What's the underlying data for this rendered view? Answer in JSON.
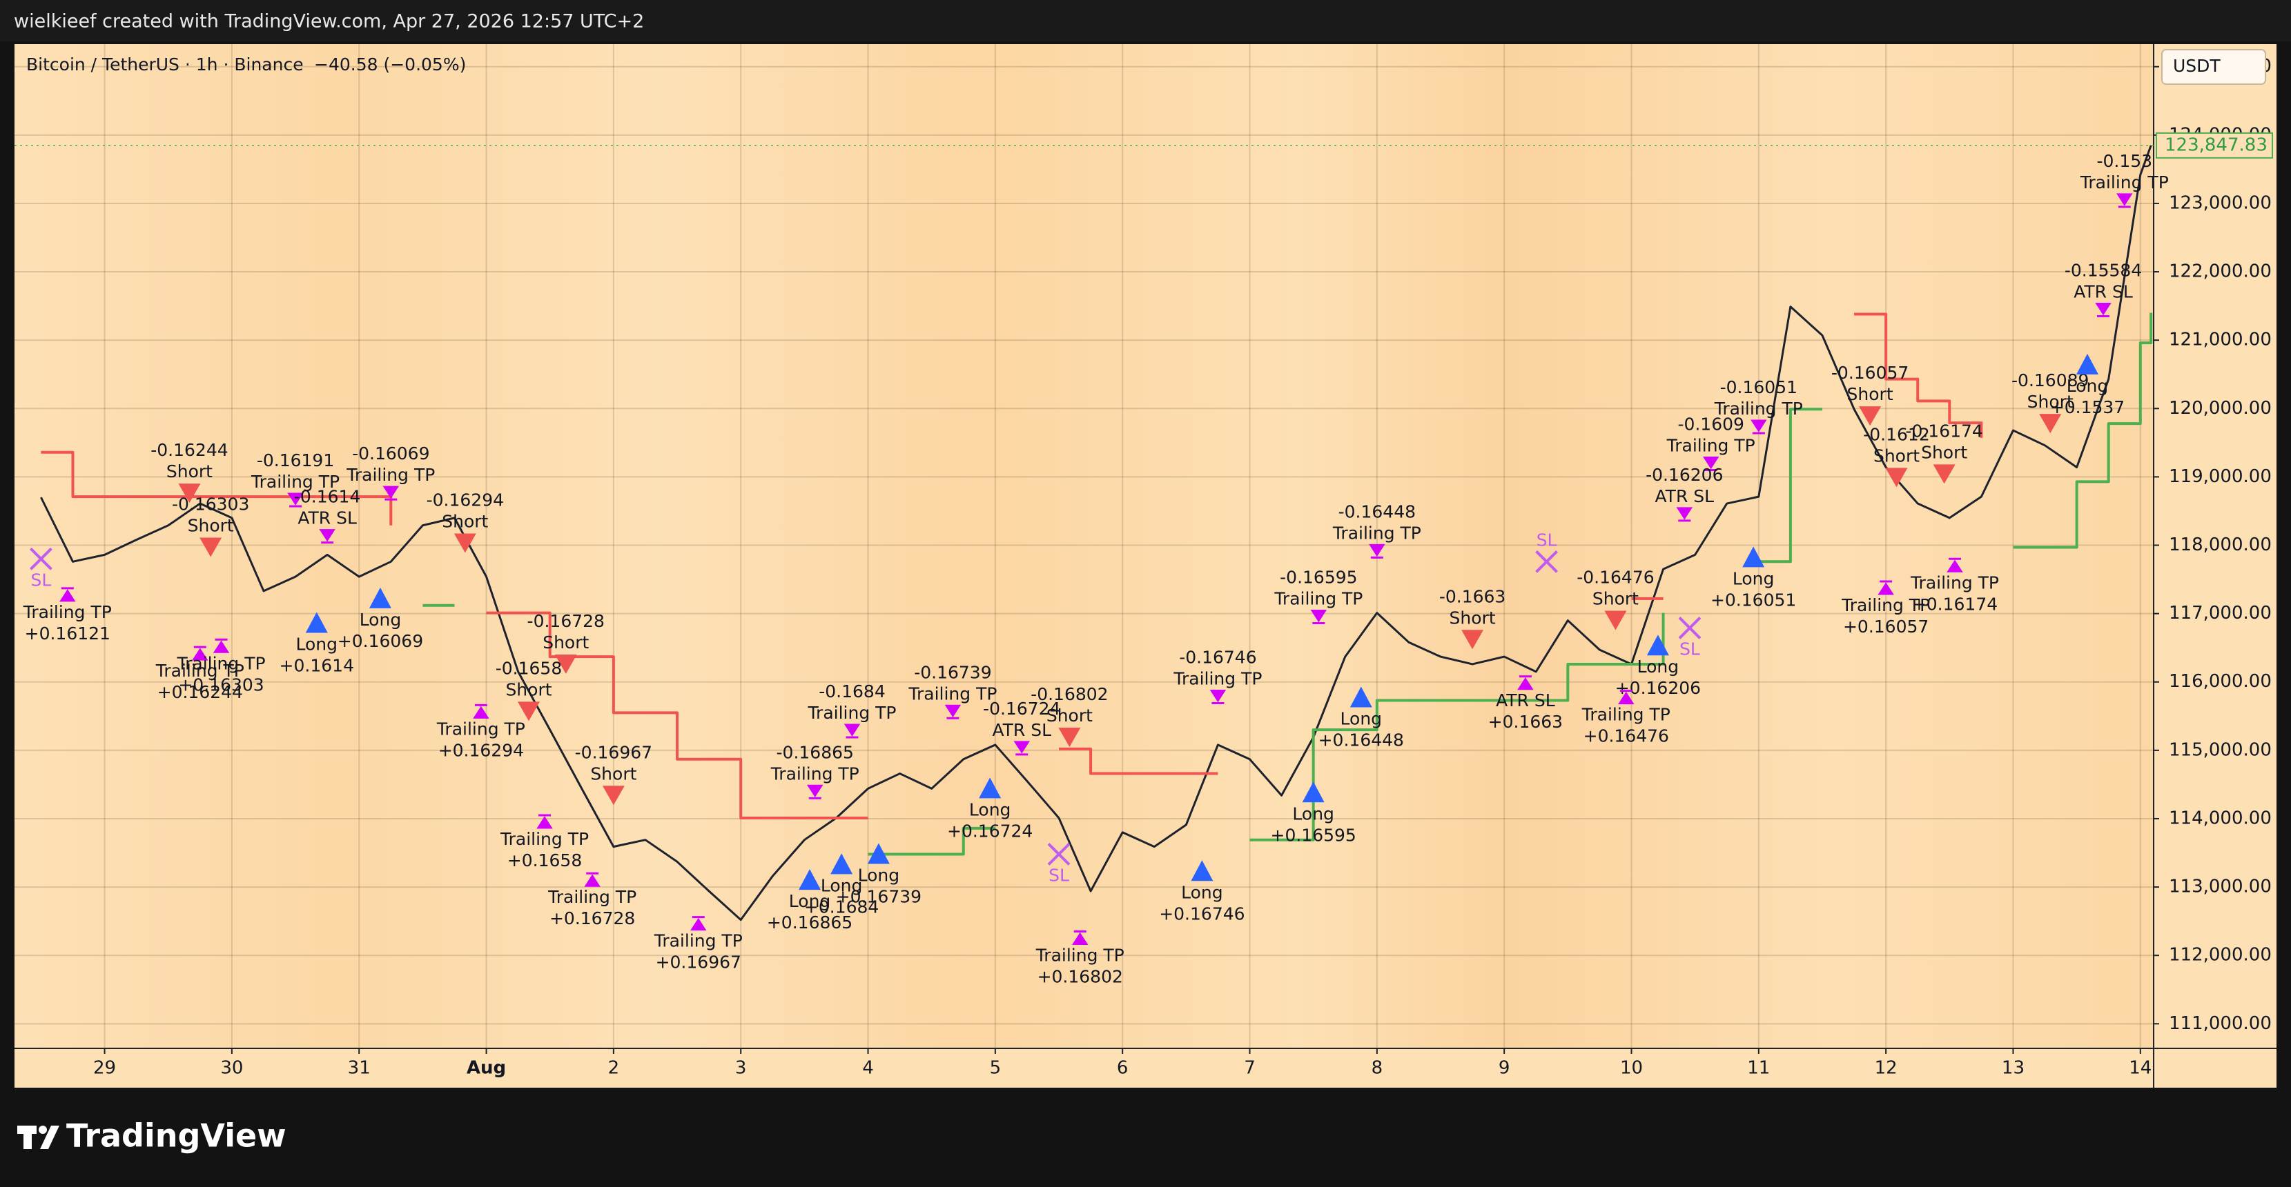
{
  "header": {
    "text": "wielkieef created with TradingView.com, Apr 27, 2026 12:57 UTC+2"
  },
  "footer": {
    "brand": "TradingView"
  },
  "chart_data": {
    "type": "line",
    "title": "Bitcoin / TetherUS · 1h · Binance",
    "change": "−40.58 (−0.05%)",
    "currency": "USDT",
    "last_price": {
      "value": 123847.83,
      "label": "123,847.83"
    },
    "grid": true,
    "xlim": [
      "07-28 07:00",
      "08-14 02:30"
    ],
    "ylim": [
      110640,
      125330
    ],
    "xticks": [
      {
        "value": "07-29",
        "label": "29"
      },
      {
        "value": "07-30",
        "label": "30"
      },
      {
        "value": "07-31",
        "label": "31"
      },
      {
        "value": "08-01",
        "label": "Aug"
      },
      {
        "value": "08-02",
        "label": "2"
      },
      {
        "value": "08-03",
        "label": "3"
      },
      {
        "value": "08-04",
        "label": "4"
      },
      {
        "value": "08-05",
        "label": "5"
      },
      {
        "value": "08-06",
        "label": "6"
      },
      {
        "value": "08-07",
        "label": "7"
      },
      {
        "value": "08-08",
        "label": "8"
      },
      {
        "value": "08-09",
        "label": "9"
      },
      {
        "value": "08-10",
        "label": "10"
      },
      {
        "value": "08-11",
        "label": "11"
      },
      {
        "value": "08-12",
        "label": "12"
      },
      {
        "value": "08-13",
        "label": "13"
      },
      {
        "value": "08-14",
        "label": "14"
      }
    ],
    "yticks": [
      {
        "value": 111000,
        "label": "111,000.00"
      },
      {
        "value": 112000,
        "label": "112,000.00"
      },
      {
        "value": 113000,
        "label": "113,000.00"
      },
      {
        "value": 114000,
        "label": "114,000.00"
      },
      {
        "value": 115000,
        "label": "115,000.00"
      },
      {
        "value": 116000,
        "label": "116,000.00"
      },
      {
        "value": 117000,
        "label": "117,000.00"
      },
      {
        "value": 118000,
        "label": "118,000.00"
      },
      {
        "value": 119000,
        "label": "119,000.00"
      },
      {
        "value": 120000,
        "label": "120,000.00"
      },
      {
        "value": 121000,
        "label": "121,000.00"
      },
      {
        "value": 122000,
        "label": "122,000.00"
      },
      {
        "value": 123000,
        "label": "123,000.00"
      },
      {
        "value": 124000,
        "label": "124,000.00"
      },
      {
        "value": 125000,
        "label": "125,000.00"
      }
    ],
    "x": [
      "07-28 12:00",
      "07-28 18:00",
      "07-29 00:00",
      "07-29 06:00",
      "07-29 12:00",
      "07-29 18:00",
      "07-30 00:00",
      "07-30 06:00",
      "07-30 12:00",
      "07-30 18:00",
      "07-31 00:00",
      "07-31 06:00",
      "07-31 12:00",
      "07-31 18:00",
      "08-01 00:00",
      "08-01 06:00",
      "08-01 12:00",
      "08-01 18:00",
      "08-02 00:00",
      "08-02 06:00",
      "08-02 12:00",
      "08-02 18:00",
      "08-03 00:00",
      "08-03 06:00",
      "08-03 12:00",
      "08-03 18:00",
      "08-04 00:00",
      "08-04 06:00",
      "08-04 12:00",
      "08-04 18:00",
      "08-05 00:00",
      "08-05 06:00",
      "08-05 12:00",
      "08-05 18:00",
      "08-06 00:00",
      "08-06 06:00",
      "08-06 12:00",
      "08-06 18:00",
      "08-07 00:00",
      "08-07 06:00",
      "08-07 12:00",
      "08-07 18:00",
      "08-08 00:00",
      "08-08 06:00",
      "08-08 12:00",
      "08-08 18:00",
      "08-09 00:00",
      "08-09 06:00",
      "08-09 12:00",
      "08-09 18:00",
      "08-10 00:00",
      "08-10 06:00",
      "08-10 12:00",
      "08-10 18:00",
      "08-11 00:00",
      "08-11 06:00",
      "08-11 12:00",
      "08-11 18:00",
      "08-12 00:00",
      "08-12 06:00",
      "08-12 12:00",
      "08-12 18:00",
      "08-13 00:00",
      "08-13 06:00",
      "08-13 12:00",
      "08-13 18:00",
      "08-14 00:00",
      "08-14 02:00"
    ],
    "series": [
      {
        "color": "#1e222d",
        "step": false,
        "values": [
          118700,
          117760,
          117860,
          118080,
          118290,
          118610,
          118400,
          117330,
          117540,
          117860,
          117540,
          117760,
          118290,
          118400,
          117540,
          116150,
          115300,
          114440,
          113590,
          113690,
          113370,
          112940,
          112520,
          113160,
          113690,
          114010,
          114440,
          114660,
          114440,
          114870,
          115080,
          114550,
          114010,
          112940,
          113800,
          113590,
          113910,
          115080,
          114870,
          114340,
          115190,
          116370,
          117010,
          116580,
          116370,
          116260,
          116370,
          116150,
          116900,
          116470,
          116260,
          117650,
          117860,
          118610,
          118710,
          121490,
          121070,
          119990,
          119140,
          118610,
          118400,
          118710,
          119680,
          119460,
          119140,
          120430,
          123420,
          123847.83
        ]
      },
      {
        "color": "#f05350",
        "step": true,
        "values": [
          119360,
          118710,
          118710,
          118710,
          118710,
          118710,
          118710,
          118710,
          118710,
          118710,
          118710,
          118290,
          null,
          null,
          117010,
          117010,
          116370,
          116370,
          115550,
          115550,
          114870,
          114870,
          114010,
          114010,
          114010,
          114010,
          114010,
          null,
          null,
          null,
          null,
          null,
          115020,
          114660,
          114660,
          114660,
          114660,
          114660,
          null,
          null,
          null,
          null,
          null,
          null,
          null,
          null,
          null,
          null,
          null,
          null,
          117220,
          117220,
          null,
          null,
          null,
          null,
          null,
          121380,
          120430,
          120110,
          119790,
          119570,
          null,
          null,
          null,
          null,
          null,
          null
        ]
      },
      {
        "color": "#4caf50",
        "step": true,
        "values": [
          null,
          null,
          null,
          null,
          null,
          null,
          null,
          null,
          null,
          null,
          null,
          null,
          117120,
          117120,
          null,
          null,
          null,
          null,
          null,
          null,
          null,
          null,
          null,
          null,
          null,
          null,
          113480,
          113480,
          113480,
          113860,
          113860,
          null,
          null,
          null,
          null,
          null,
          null,
          null,
          113690,
          113690,
          115300,
          115300,
          115730,
          115730,
          115730,
          115730,
          115730,
          115730,
          116260,
          116260,
          116260,
          117010,
          null,
          null,
          117760,
          119990,
          119990,
          null,
          null,
          null,
          null,
          null,
          117970,
          117970,
          118930,
          119780,
          120960,
          121400
        ]
      }
    ],
    "signals": [
      {
        "type": "short",
        "side": "above",
        "x": "07-29 16:00",
        "y": 118760,
        "text": [
          "-0.16244",
          "Short"
        ]
      },
      {
        "type": "short",
        "side": "above",
        "x": "07-29 20:00",
        "y": 117970,
        "text": [
          "-0.16303",
          "Short"
        ]
      },
      {
        "type": "short",
        "side": "above",
        "x": "07-31 20:00",
        "y": 118030,
        "text": [
          "-0.16294",
          "Short"
        ]
      },
      {
        "type": "short",
        "side": "above",
        "x": "08-01 15:00",
        "y": 116260,
        "text": [
          "-0.16728",
          "Short"
        ]
      },
      {
        "type": "short",
        "side": "above",
        "x": "08-01 08:00",
        "y": 115570,
        "text": [
          "-0.1658",
          "Short"
        ]
      },
      {
        "type": "short",
        "side": "above",
        "x": "08-02 00:00",
        "y": 114340,
        "text": [
          "-0.16967",
          "Short"
        ]
      },
      {
        "type": "short",
        "side": "above",
        "x": "08-05 14:00",
        "y": 115190,
        "text": [
          "-0.16802",
          "Short"
        ]
      },
      {
        "type": "short",
        "side": "above",
        "x": "08-08 18:00",
        "y": 116620,
        "text": [
          "-0.1663",
          "Short"
        ]
      },
      {
        "type": "short",
        "side": "above",
        "x": "08-09 21:00",
        "y": 116900,
        "text": [
          "-0.16476",
          "Short"
        ]
      },
      {
        "type": "short",
        "side": "above",
        "x": "08-11 21:00",
        "y": 119890,
        "text": [
          "-0.16057",
          "Short"
        ]
      },
      {
        "type": "short",
        "side": "above",
        "x": "08-12 02:00",
        "y": 118990,
        "text": [
          "-0.1612",
          "Short"
        ]
      },
      {
        "type": "short",
        "side": "above",
        "x": "08-12 11:00",
        "y": 119040,
        "text": [
          "-0.16174",
          "Short"
        ]
      },
      {
        "type": "short",
        "side": "above",
        "x": "08-13 07:00",
        "y": 119780,
        "text": [
          "-0.16089",
          "Short"
        ]
      },
      {
        "type": "long",
        "side": "below",
        "x": "07-30 16:00",
        "y": 116860,
        "text": [
          "Long",
          "+0.1614"
        ]
      },
      {
        "type": "long",
        "side": "below",
        "x": "07-31 04:00",
        "y": 117220,
        "text": [
          "Long",
          "+0.16069"
        ]
      },
      {
        "type": "long",
        "side": "below",
        "x": "08-03 13:00",
        "y": 113100,
        "text": [
          "Long",
          "+0.16865"
        ]
      },
      {
        "type": "long",
        "side": "below",
        "x": "08-03 19:00",
        "y": 113330,
        "text": [
          "Long",
          "+0.1684"
        ]
      },
      {
        "type": "long",
        "side": "below",
        "x": "08-04 02:00",
        "y": 113480,
        "text": [
          "Long",
          "+0.16739"
        ]
      },
      {
        "type": "long",
        "side": "below",
        "x": "08-04 23:00",
        "y": 114440,
        "text": [
          "Long",
          "+0.16724"
        ]
      },
      {
        "type": "long",
        "side": "below",
        "x": "08-06 15:00",
        "y": 113230,
        "text": [
          "Long",
          "+0.16746"
        ]
      },
      {
        "type": "long",
        "side": "below",
        "x": "08-07 12:00",
        "y": 114380,
        "text": [
          "Long",
          "+0.16595"
        ]
      },
      {
        "type": "long",
        "side": "below",
        "x": "08-07 21:00",
        "y": 115770,
        "text": [
          "Long",
          "+0.16448"
        ]
      },
      {
        "type": "long",
        "side": "below",
        "x": "08-10 05:00",
        "y": 116530,
        "text": [
          "Long",
          "+0.16206"
        ]
      },
      {
        "type": "long",
        "side": "below",
        "x": "08-10 23:00",
        "y": 117820,
        "text": [
          "Long",
          "+0.16051"
        ]
      },
      {
        "type": "long",
        "side": "below",
        "x": "08-13 14:00",
        "y": 120640,
        "text": [
          "Long",
          "+0.1537"
        ]
      },
      {
        "type": "tp",
        "side": "above",
        "x": "07-30 12:00",
        "y": 118610,
        "text": [
          "-0.16191",
          "Trailing TP"
        ]
      },
      {
        "type": "tp",
        "side": "above",
        "x": "07-31 06:00",
        "y": 118710,
        "text": [
          "-0.16069",
          "Trailing TP"
        ]
      },
      {
        "type": "tp",
        "side": "above",
        "x": "08-03 14:00",
        "y": 114340,
        "text": [
          "-0.16865",
          "Trailing TP"
        ]
      },
      {
        "type": "tp",
        "side": "above",
        "x": "08-03 21:00",
        "y": 115230,
        "text": [
          "-0.1684",
          "Trailing TP"
        ]
      },
      {
        "type": "tp",
        "side": "above",
        "x": "08-04 16:00",
        "y": 115510,
        "text": [
          "-0.16739",
          "Trailing TP"
        ]
      },
      {
        "type": "tp",
        "side": "above",
        "x": "08-06 18:00",
        "y": 115730,
        "text": [
          "-0.16746",
          "Trailing TP"
        ]
      },
      {
        "type": "tp",
        "side": "above",
        "x": "08-07 13:00",
        "y": 116900,
        "text": [
          "-0.16595",
          "Trailing TP"
        ]
      },
      {
        "type": "tp",
        "side": "above",
        "x": "08-08 00:00",
        "y": 117860,
        "text": [
          "-0.16448",
          "Trailing TP"
        ]
      },
      {
        "type": "tp",
        "side": "above",
        "x": "08-10 15:00",
        "y": 119140,
        "text": [
          "-0.1609",
          "Trailing TP"
        ]
      },
      {
        "type": "tp",
        "side": "above",
        "x": "08-11 00:00",
        "y": 119680,
        "text": [
          "-0.16051",
          "Trailing TP"
        ]
      },
      {
        "type": "tp",
        "side": "above",
        "x": "08-13 21:00",
        "y": 122990,
        "text": [
          "-0.153",
          "Trailing TP"
        ]
      },
      {
        "type": "tp",
        "side": "below",
        "x": "07-28 17:00",
        "y": 117330,
        "text": [
          "Trailing TP",
          "+0.16121"
        ]
      },
      {
        "type": "tp",
        "side": "below",
        "x": "07-29 18:00",
        "y": 116470,
        "text": [
          "Trailing TP",
          "+0.16244"
        ]
      },
      {
        "type": "tp",
        "side": "below",
        "x": "07-29 22:00",
        "y": 116580,
        "text": [
          "Trailing TP",
          "+0.16303"
        ]
      },
      {
        "type": "tp",
        "side": "below",
        "x": "07-31 23:00",
        "y": 115620,
        "text": [
          "Trailing TP",
          "+0.16294"
        ]
      },
      {
        "type": "tp",
        "side": "below",
        "x": "08-01 11:00",
        "y": 114010,
        "text": [
          "Trailing TP",
          "+0.1658"
        ]
      },
      {
        "type": "tp",
        "side": "below",
        "x": "08-01 20:00",
        "y": 113160,
        "text": [
          "Trailing TP",
          "+0.16728"
        ]
      },
      {
        "type": "tp",
        "side": "below",
        "x": "08-02 16:00",
        "y": 112520,
        "text": [
          "Trailing TP",
          "+0.16967"
        ]
      },
      {
        "type": "tp",
        "side": "below",
        "x": "08-05 16:00",
        "y": 112310,
        "text": [
          "Trailing TP",
          "+0.16802"
        ]
      },
      {
        "type": "tp",
        "side": "below",
        "x": "08-09 23:00",
        "y": 115830,
        "text": [
          "Trailing TP",
          "+0.16476"
        ]
      },
      {
        "type": "tp",
        "side": "below",
        "x": "08-12 00:00",
        "y": 117430,
        "text": [
          "Trailing TP",
          "+0.16057"
        ]
      },
      {
        "type": "tp",
        "side": "below",
        "x": "08-12 13:00",
        "y": 117760,
        "text": [
          "Trailing TP",
          "+0.16174"
        ]
      },
      {
        "type": "atr",
        "side": "above",
        "x": "07-30 18:00",
        "y": 118080,
        "text": [
          "-0.1614",
          "ATR SL"
        ]
      },
      {
        "type": "atr",
        "side": "above",
        "x": "08-05 05:00",
        "y": 114980,
        "text": [
          "-0.16724",
          "ATR SL"
        ]
      },
      {
        "type": "atr",
        "side": "above",
        "x": "08-10 10:00",
        "y": 118400,
        "text": [
          "-0.16206",
          "ATR SL"
        ]
      },
      {
        "type": "atr",
        "side": "above",
        "x": "08-13 17:00",
        "y": 121390,
        "text": [
          "-0.15584",
          "ATR SL"
        ]
      },
      {
        "type": "atr",
        "side": "below",
        "x": "08-09 04:00",
        "y": 116040,
        "text": [
          "ATR SL",
          "+0.1663"
        ]
      },
      {
        "type": "sl",
        "side": "below",
        "x": "07-28 12:00",
        "y": 117800,
        "text": [
          "SL"
        ]
      },
      {
        "type": "sl",
        "side": "below",
        "x": "08-05 12:00",
        "y": 113480,
        "text": [
          "SL"
        ]
      },
      {
        "type": "sl",
        "side": "above",
        "x": "08-09 08:00",
        "y": 117760,
        "text": [
          "SL"
        ]
      },
      {
        "type": "sl",
        "side": "below",
        "x": "08-10 11:00",
        "y": 116790,
        "text": [
          "SL"
        ]
      }
    ]
  }
}
